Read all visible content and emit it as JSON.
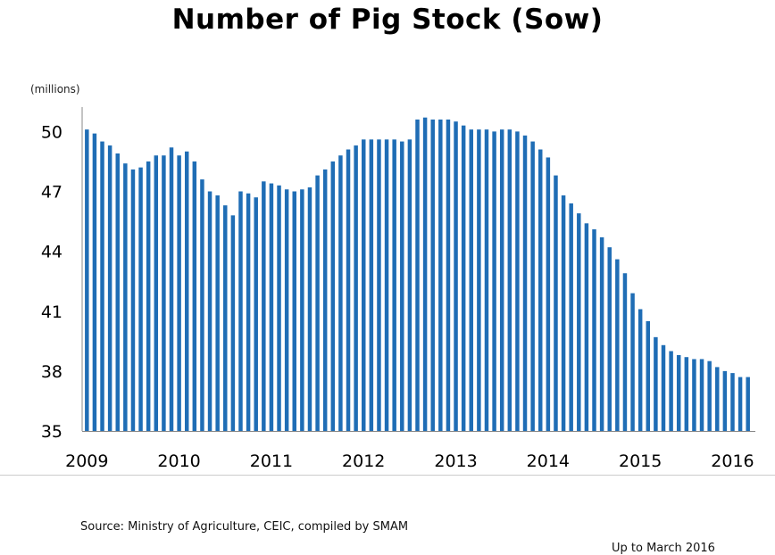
{
  "title": "Number of Pig Stock (Sow)",
  "unit_label": "(millions)",
  "source": "Source: Ministry of Agriculture, CEIC, compiled by SMAM",
  "note": "Up to March 2016",
  "colors": {
    "bar": "#1f6db5",
    "axis": "#888888",
    "grid": "#cccccc"
  },
  "chart_data": {
    "type": "bar",
    "title": "Number of Pig Stock (Sow)",
    "ylabel": "(millions)",
    "ylim": [
      35,
      51
    ],
    "yticks": [
      35,
      38,
      41,
      44,
      47,
      50
    ],
    "xticks": [
      "2009",
      "2010",
      "2011",
      "2012",
      "2013",
      "2014",
      "2015",
      "2016"
    ],
    "x_start": "2009-01",
    "x_end": "2016-03",
    "frequency": "monthly",
    "values": [
      50.1,
      49.9,
      49.5,
      49.3,
      48.9,
      48.4,
      48.1,
      48.2,
      48.5,
      48.8,
      48.8,
      49.2,
      48.8,
      49.0,
      48.5,
      47.6,
      47.0,
      46.8,
      46.3,
      45.8,
      47.0,
      46.9,
      46.7,
      47.5,
      47.4,
      47.3,
      47.1,
      47.0,
      47.1,
      47.2,
      47.8,
      48.1,
      48.5,
      48.8,
      49.1,
      49.3,
      49.6,
      49.6,
      49.6,
      49.6,
      49.6,
      49.5,
      49.6,
      50.6,
      50.7,
      50.6,
      50.6,
      50.6,
      50.5,
      50.3,
      50.1,
      50.1,
      50.1,
      50.0,
      50.1,
      50.1,
      50.0,
      49.8,
      49.5,
      49.1,
      48.7,
      47.8,
      46.8,
      46.4,
      45.9,
      45.4,
      45.1,
      44.7,
      44.2,
      43.6,
      42.9,
      41.9,
      41.1,
      40.5,
      39.7,
      39.3,
      39.0,
      38.8,
      38.7,
      38.6,
      38.6,
      38.5,
      38.2,
      38.0,
      37.9,
      37.7,
      37.7
    ]
  }
}
